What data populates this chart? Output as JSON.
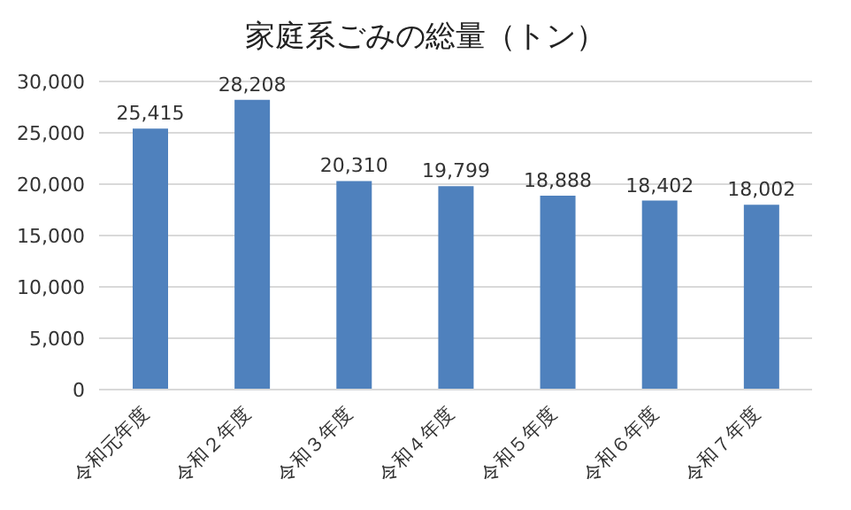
{
  "chart_data": {
    "type": "bar",
    "title": "家庭系ごみの総量（トン）",
    "categories": [
      "令和元年度",
      "令和２年度",
      "令和３年度",
      "令和４年度",
      "令和５年度",
      "令和６年度",
      "令和７年度"
    ],
    "values": [
      25415,
      28208,
      20310,
      19799,
      18888,
      18402,
      18002
    ],
    "color": "#4f81bd",
    "ylim": [
      0,
      30000
    ],
    "yticks": [
      {
        "value": 0,
        "label": "0"
      },
      {
        "value": 5000,
        "label": "5,000"
      },
      {
        "value": 10000,
        "label": "10,000"
      },
      {
        "value": 15000,
        "label": "15,000"
      },
      {
        "value": 20000,
        "label": "20,000"
      },
      {
        "value": 25000,
        "label": "25,000"
      },
      {
        "value": 30000,
        "label": "30,000"
      }
    ],
    "value_labels": [
      "25,415",
      "28,208",
      "20,310",
      "19,799",
      "18,888",
      "18,402",
      "18,002"
    ],
    "grid": "y",
    "legend": false
  }
}
